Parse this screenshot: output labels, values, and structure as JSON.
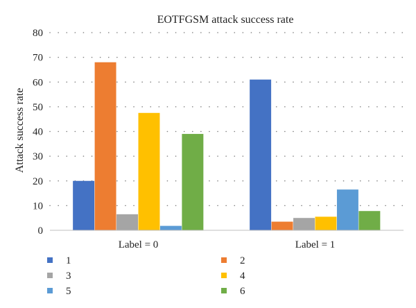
{
  "chart_data": {
    "type": "bar",
    "title": "EOTFGSM attack success rate",
    "xlabel": "",
    "ylabel": "Attack success rate",
    "ylim": [
      0,
      80
    ],
    "yticks": [
      0,
      10,
      20,
      30,
      40,
      50,
      60,
      70,
      80
    ],
    "categories": [
      "Label = 0",
      "Label = 1"
    ],
    "series": [
      {
        "name": "1",
        "color": "#4472C4",
        "values": [
          20,
          61
        ]
      },
      {
        "name": "2",
        "color": "#ED7D31",
        "values": [
          68,
          3.5
        ]
      },
      {
        "name": "3",
        "color": "#A5A5A5",
        "values": [
          6.5,
          5
        ]
      },
      {
        "name": "4",
        "color": "#FFC000",
        "values": [
          47.5,
          5.5
        ]
      },
      {
        "name": "5",
        "color": "#5B9BD5",
        "values": [
          1.8,
          16.5
        ]
      },
      {
        "name": "6",
        "color": "#70AD47",
        "values": [
          39,
          7.8
        ]
      }
    ],
    "grid": "horizontal-dotted",
    "legend_position": "bottom"
  }
}
